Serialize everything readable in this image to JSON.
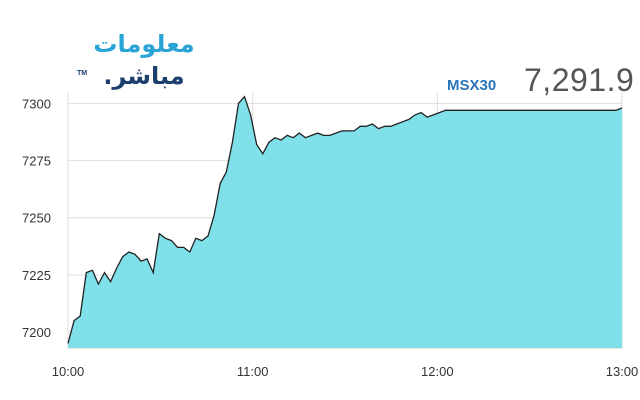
{
  "logo": {
    "line1": "معلومات",
    "line2": "مباشر.",
    "tm": "TM"
  },
  "header": {
    "index_name": "MSX30",
    "index_value": "7,291.9"
  },
  "colors": {
    "fill": "#7fe0e9",
    "line": "#222222",
    "grid": "#dddddd",
    "logo_primary": "#2aa3d6",
    "logo_secondary": "#1c3f6e",
    "index_name": "#2b74b8",
    "index_value": "#555555"
  },
  "chart_data": {
    "type": "area",
    "x_ticks": [
      "10:00",
      "11:00",
      "12:00",
      "13:00"
    ],
    "y_ticks": [
      7200,
      7225,
      7250,
      7275,
      7300
    ],
    "ylim": [
      7193,
      7305
    ],
    "xlim": [
      0,
      182
    ],
    "grid": "vertical and horizontal",
    "x": [
      0,
      2,
      4,
      6,
      8,
      10,
      12,
      14,
      16,
      18,
      20,
      22,
      24,
      26,
      28,
      30,
      32,
      34,
      36,
      38,
      40,
      42,
      44,
      46,
      48,
      50,
      52,
      54,
      56,
      58,
      60,
      62,
      64,
      66,
      68,
      70,
      72,
      74,
      76,
      78,
      80,
      82,
      84,
      86,
      88,
      90,
      92,
      94,
      96,
      98,
      100,
      102,
      104,
      106,
      108,
      110,
      112,
      114,
      116,
      118,
      120,
      122,
      124,
      126,
      128,
      130,
      132,
      134,
      136,
      138,
      140,
      142,
      144,
      146,
      148,
      150,
      152,
      154,
      156,
      158,
      160,
      162,
      164,
      166,
      168,
      170,
      172,
      174,
      176,
      178,
      180,
      182
    ],
    "values": [
      7195,
      7205,
      7207,
      7226,
      7227,
      7221,
      7226,
      7222,
      7228,
      7233,
      7235,
      7234,
      7231,
      7232,
      7226,
      7243,
      7241,
      7240,
      7237,
      7237,
      7235,
      7241,
      7240,
      7242,
      7251,
      7265,
      7270,
      7283,
      7300,
      7303,
      7295,
      7282,
      7278,
      7283,
      7285,
      7284,
      7286,
      7285,
      7287,
      7285,
      7286,
      7287,
      7286,
      7286,
      7287,
      7288,
      7288,
      7288,
      7290,
      7290,
      7291,
      7289,
      7290,
      7290,
      7291,
      7292,
      7293,
      7295,
      7296,
      7294,
      7295,
      7296,
      7297,
      7297,
      7297,
      7297,
      7297,
      7297,
      7297,
      7297,
      7297,
      7297,
      7297,
      7297,
      7297,
      7297,
      7297,
      7297,
      7297,
      7297,
      7297,
      7297,
      7297,
      7297,
      7297,
      7297,
      7297,
      7297,
      7297,
      7297,
      7297,
      7298
    ]
  }
}
